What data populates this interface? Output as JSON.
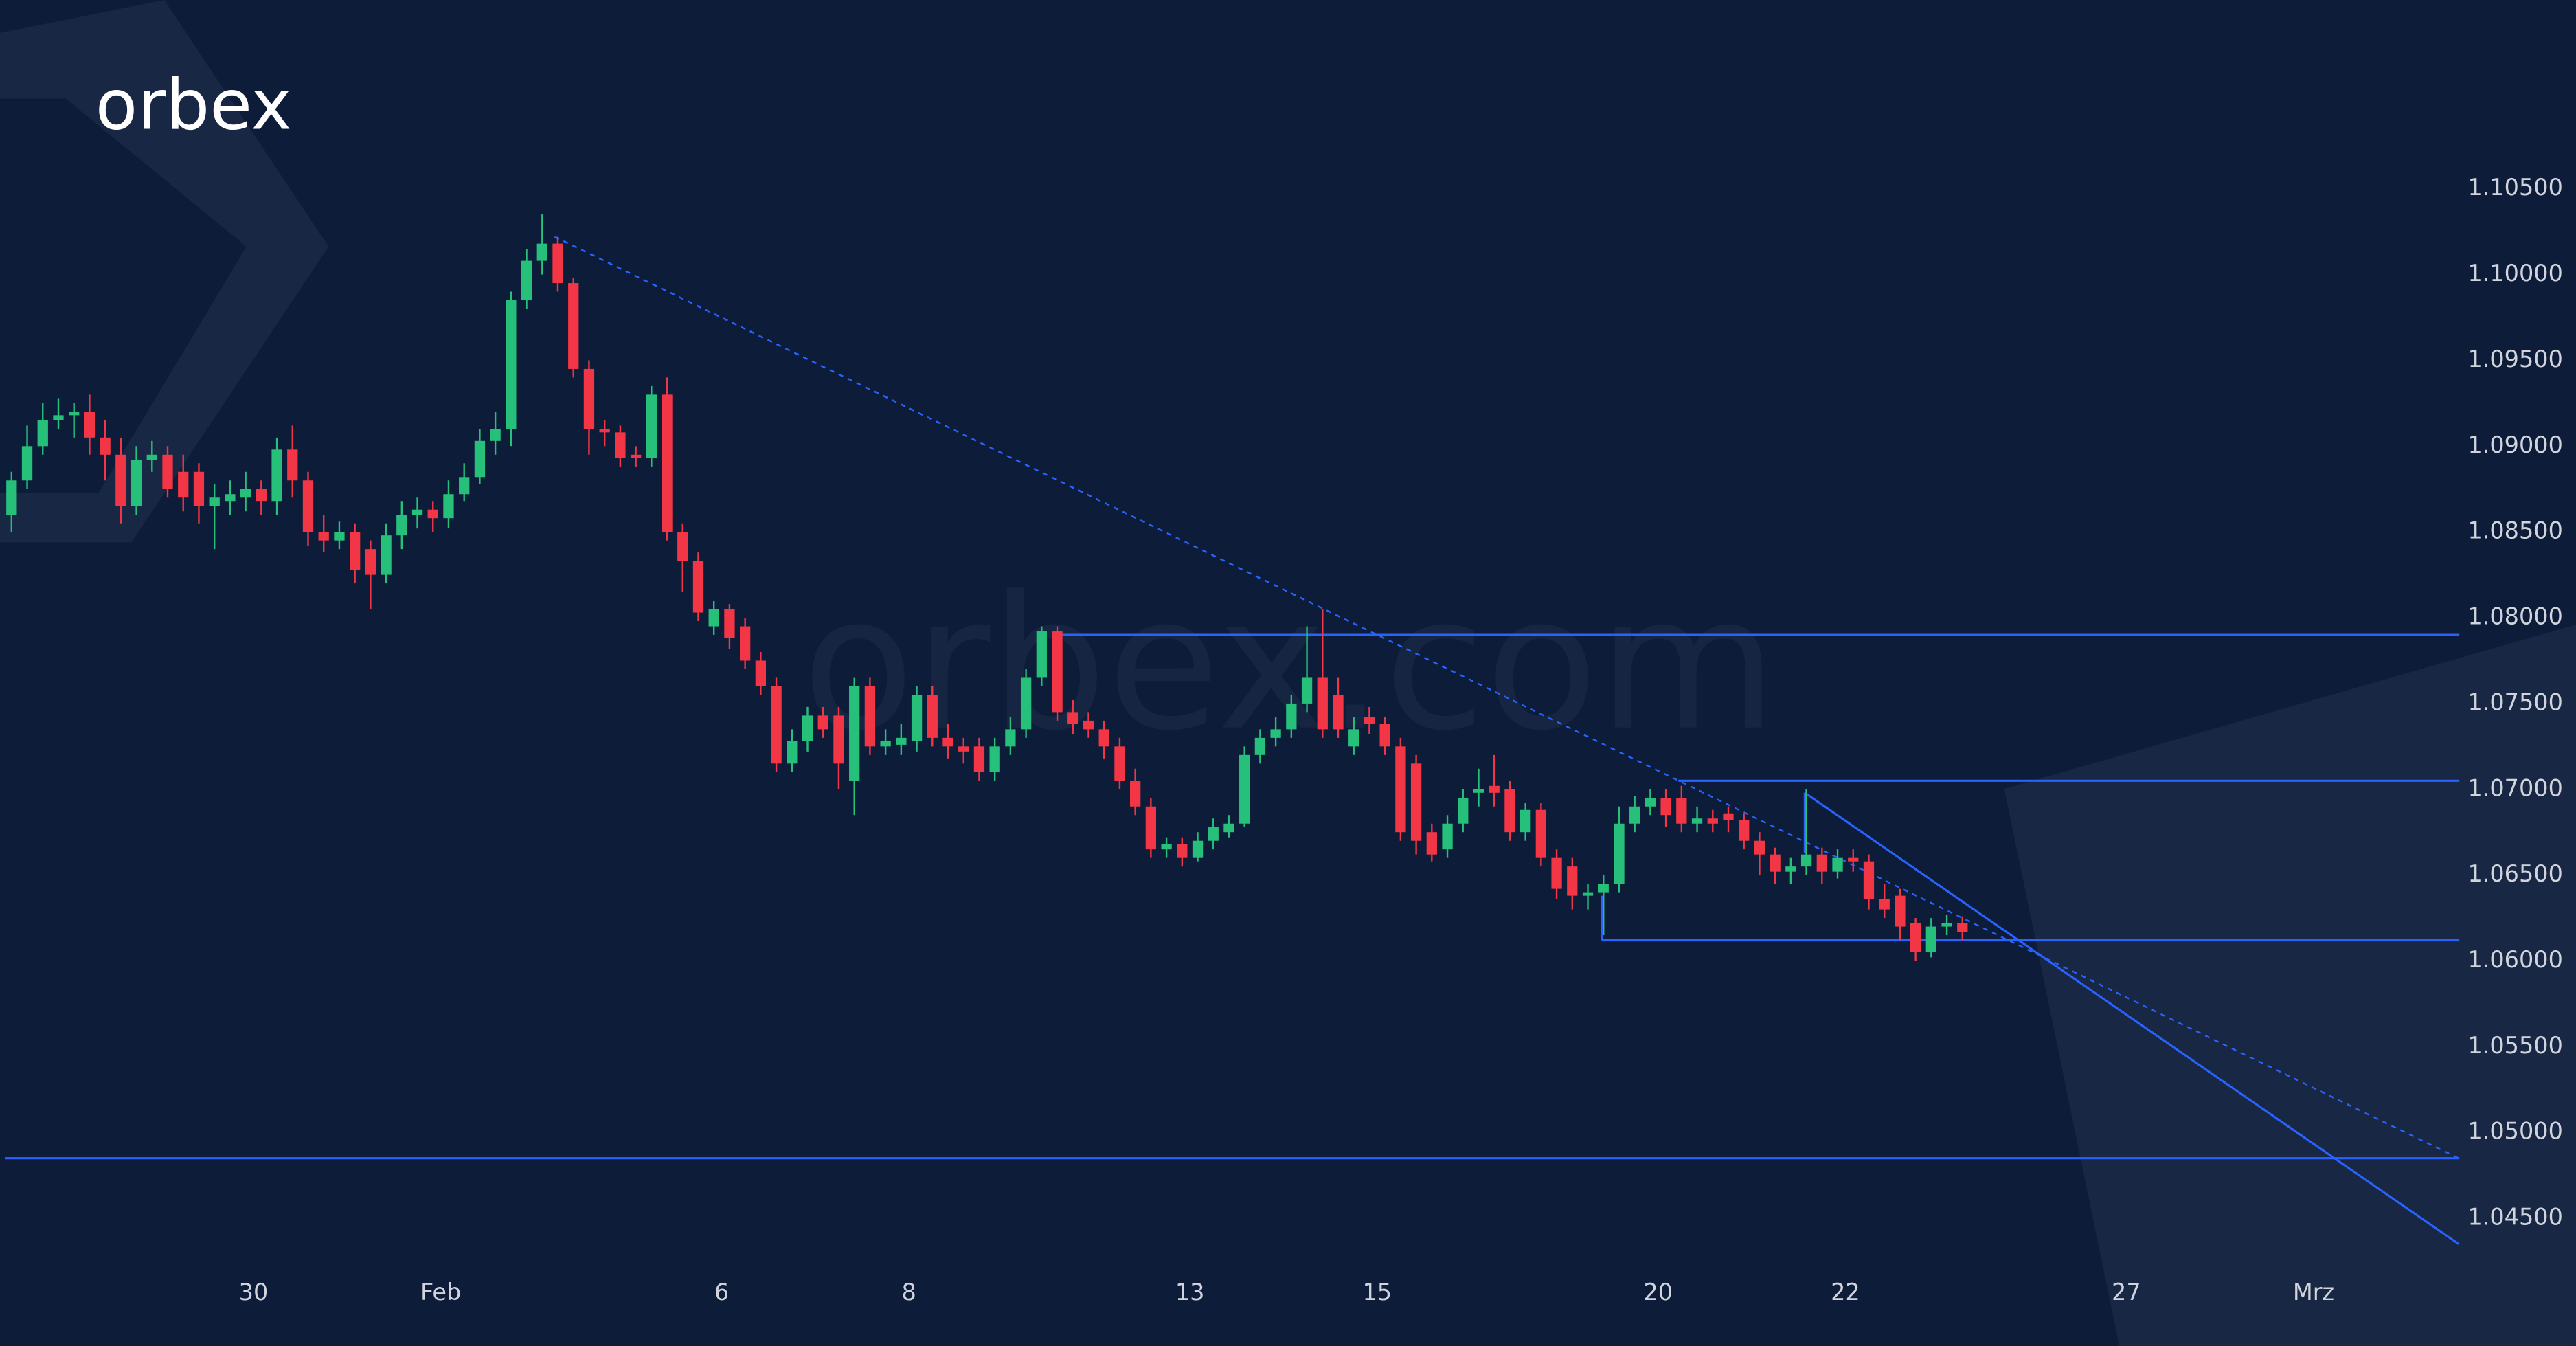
{
  "logo": "orbex",
  "watermark": "orbex.com",
  "chart_data": {
    "type": "candlestick",
    "up_color": "#26c07a",
    "down_color": "#f23645",
    "line_color": "#2962ff",
    "open": [
      1.086,
      1.088,
      1.09,
      1.0915,
      1.0918,
      1.092,
      1.0905,
      1.0895,
      1.0865,
      1.0892,
      1.0895,
      1.0885,
      1.0885,
      1.0865,
      1.0868,
      1.087,
      1.0875,
      1.0868,
      1.0898,
      1.088,
      1.085,
      1.0845,
      1.085,
      1.084,
      1.0825,
      1.0848,
      1.086,
      1.0863,
      1.0858,
      1.0872,
      1.0882,
      1.0903,
      1.091,
      1.0985,
      1.1008,
      1.1018,
      1.0995,
      1.0945,
      1.091,
      1.0908,
      1.0895,
      1.0893,
      1.093,
      1.085,
      1.0833,
      1.0795,
      1.0805,
      1.0795,
      1.0775,
      1.076,
      1.0715,
      1.0728,
      1.0743,
      1.0743,
      1.0705,
      1.076,
      1.0725,
      1.0726,
      1.0728,
      1.0755,
      1.073,
      1.0725,
      1.0725,
      1.071,
      1.0725,
      1.0735,
      1.0765,
      1.0792,
      1.0745,
      1.074,
      1.0735,
      1.0725,
      1.0705,
      1.069,
      1.0665,
      1.0668,
      1.066,
      1.067,
      1.0675,
      1.068,
      1.072,
      1.073,
      1.0735,
      1.075,
      1.0765,
      1.0755,
      1.0725,
      1.0742,
      1.0738,
      1.0725,
      1.0715,
      1.0675,
      1.0665,
      1.068,
      1.0698,
      1.0702,
      1.07,
      1.0675,
      1.0688,
      1.066,
      1.0655,
      1.0638,
      1.064,
      1.0645,
      1.068,
      1.069,
      1.0695,
      1.0695,
      1.068,
      1.0683,
      1.0686,
      1.0682,
      1.067,
      1.0662,
      1.0652,
      1.0655,
      1.0662,
      1.0652,
      1.066,
      1.0658,
      1.0636,
      1.0638,
      1.0622,
      1.0605,
      1.062,
      1.0622
    ],
    "high": [
      1.0885,
      1.0912,
      1.0925,
      1.0928,
      1.0925,
      1.093,
      1.0915,
      1.0905,
      1.09,
      1.0903,
      1.09,
      1.0895,
      1.089,
      1.0878,
      1.088,
      1.0885,
      1.088,
      1.0905,
      1.0912,
      1.0885,
      1.086,
      1.0856,
      1.0855,
      1.0845,
      1.0855,
      1.0868,
      1.087,
      1.0868,
      1.088,
      1.089,
      1.091,
      1.092,
      1.099,
      1.1015,
      1.1035,
      1.1022,
      1.0998,
      1.095,
      1.0915,
      1.0912,
      1.09,
      1.0935,
      1.094,
      1.0855,
      1.0838,
      1.081,
      1.0808,
      1.08,
      1.078,
      1.0765,
      1.0735,
      1.0748,
      1.0748,
      1.0748,
      1.0765,
      1.0765,
      1.0735,
      1.0738,
      1.076,
      1.076,
      1.0738,
      1.073,
      1.073,
      1.073,
      1.0742,
      1.077,
      1.0795,
      1.0795,
      1.0752,
      1.0745,
      1.074,
      1.073,
      1.0712,
      1.0695,
      1.0672,
      1.0672,
      1.0675,
      1.0683,
      1.0685,
      1.0725,
      1.0735,
      1.0742,
      1.0755,
      1.0795,
      1.0805,
      1.0765,
      1.0742,
      1.0748,
      1.0742,
      1.073,
      1.072,
      1.068,
      1.0685,
      1.07,
      1.0712,
      1.072,
      1.0705,
      1.0692,
      1.0692,
      1.0665,
      1.066,
      1.0645,
      1.065,
      1.069,
      1.0696,
      1.07,
      1.07,
      1.0702,
      1.069,
      1.0688,
      1.069,
      1.0686,
      1.0675,
      1.0666,
      1.066,
      1.07,
      1.0666,
      1.0665,
      1.0665,
      1.0662,
      1.0645,
      1.0642,
      1.0625,
      1.0625,
      1.0627,
      1.0626
    ],
    "low": [
      1.085,
      1.0875,
      1.0895,
      1.091,
      1.0905,
      1.0895,
      1.088,
      1.0855,
      1.086,
      1.0885,
      1.087,
      1.0862,
      1.0855,
      1.084,
      1.086,
      1.0862,
      1.086,
      1.086,
      1.087,
      1.0842,
      1.0838,
      1.084,
      1.082,
      1.0805,
      1.082,
      1.084,
      1.0852,
      1.085,
      1.0852,
      1.0868,
      1.0878,
      1.0895,
      1.09,
      1.098,
      1.1,
      1.099,
      1.094,
      1.0895,
      1.09,
      1.0888,
      1.0888,
      1.0888,
      1.0845,
      1.0815,
      1.0798,
      1.079,
      1.0782,
      1.077,
      1.0755,
      1.071,
      1.071,
      1.0722,
      1.073,
      1.07,
      1.0685,
      1.072,
      1.072,
      1.072,
      1.0722,
      1.0725,
      1.0718,
      1.0715,
      1.0705,
      1.0705,
      1.072,
      1.073,
      1.076,
      1.074,
      1.0732,
      1.073,
      1.0718,
      1.07,
      1.0685,
      1.066,
      1.066,
      1.0655,
      1.0658,
      1.0665,
      1.0672,
      1.0678,
      1.0715,
      1.0725,
      1.073,
      1.0745,
      1.073,
      1.073,
      1.072,
      1.0732,
      1.072,
      1.067,
      1.0662,
      1.0658,
      1.066,
      1.0675,
      1.069,
      1.069,
      1.067,
      1.067,
      1.0655,
      1.0636,
      1.063,
      1.063,
      1.0615,
      1.064,
      1.0675,
      1.0685,
      1.0678,
      1.0675,
      1.0675,
      1.0675,
      1.0675,
      1.0665,
      1.065,
      1.0645,
      1.0645,
      1.065,
      1.0645,
      1.0648,
      1.0652,
      1.063,
      1.0625,
      1.0612,
      1.06,
      1.0602,
      1.0615,
      1.0612
    ],
    "close": [
      1.088,
      1.09,
      1.0915,
      1.0918,
      1.092,
      1.0905,
      1.0895,
      1.0865,
      1.0892,
      1.0895,
      1.0875,
      1.087,
      1.0865,
      1.087,
      1.0872,
      1.0875,
      1.0868,
      1.0898,
      1.088,
      1.085,
      1.0845,
      1.085,
      1.0828,
      1.0825,
      1.0848,
      1.086,
      1.0863,
      1.0858,
      1.0872,
      1.0882,
      1.0903,
      1.091,
      1.0985,
      1.1008,
      1.1018,
      1.0995,
      1.0945,
      1.091,
      1.0908,
      1.0893,
      1.0893,
      1.093,
      1.085,
      1.0833,
      1.0803,
      1.0805,
      1.0788,
      1.0775,
      1.076,
      1.0715,
      1.0728,
      1.0743,
      1.0735,
      1.0715,
      1.076,
      1.0725,
      1.0728,
      1.073,
      1.0755,
      1.073,
      1.0725,
      1.0722,
      1.071,
      1.0725,
      1.0735,
      1.0765,
      1.0792,
      1.0745,
      1.0738,
      1.0735,
      1.0725,
      1.0705,
      1.069,
      1.0665,
      1.0668,
      1.066,
      1.067,
      1.0678,
      1.068,
      1.072,
      1.073,
      1.0735,
      1.075,
      1.0765,
      1.0735,
      1.0735,
      1.0735,
      1.0738,
      1.0725,
      1.0675,
      1.067,
      1.0662,
      1.068,
      1.0695,
      1.07,
      1.0698,
      1.0675,
      1.0688,
      1.066,
      1.0642,
      1.0638,
      1.064,
      1.0645,
      1.068,
      1.069,
      1.0695,
      1.0685,
      1.068,
      1.0683,
      1.068,
      1.0682,
      1.067,
      1.0662,
      1.0652,
      1.0655,
      1.0662,
      1.0652,
      1.066,
      1.0658,
      1.0636,
      1.063,
      1.062,
      1.0605,
      1.062,
      1.0622,
      1.0617
    ],
    "xlim": [
      -0.74,
      156.84
    ],
    "xticks": [
      {
        "value": 15.5,
        "label": "30"
      },
      {
        "value": 27.5,
        "label": "Feb"
      },
      {
        "value": 45.5,
        "label": "6"
      },
      {
        "value": 57.5,
        "label": "8"
      },
      {
        "value": 75.5,
        "label": "13"
      },
      {
        "value": 87.5,
        "label": "15"
      },
      {
        "value": 105.5,
        "label": "20"
      },
      {
        "value": 117.5,
        "label": "22"
      },
      {
        "value": 135.5,
        "label": "27"
      },
      {
        "value": 147.5,
        "label": "Mrz"
      }
    ],
    "ylim": [
      1.04225,
      1.116
    ],
    "yticks": [
      {
        "value": 1.045,
        "label": "1.04500"
      },
      {
        "value": 1.05,
        "label": "1.05000"
      },
      {
        "value": 1.055,
        "label": "1.05500"
      },
      {
        "value": 1.06,
        "label": "1.06000"
      },
      {
        "value": 1.065,
        "label": "1.06500"
      },
      {
        "value": 1.07,
        "label": "1.07000"
      },
      {
        "value": 1.075,
        "label": "1.07500"
      },
      {
        "value": 1.08,
        "label": "1.08000"
      },
      {
        "value": 1.085,
        "label": "1.08500"
      },
      {
        "value": 1.09,
        "label": "1.09000"
      },
      {
        "value": 1.095,
        "label": "1.09500"
      },
      {
        "value": 1.1,
        "label": "1.10000"
      },
      {
        "value": 1.105,
        "label": "1.10500"
      }
    ],
    "hlines": [
      {
        "value": 1.079,
        "x_start": 66.7
      },
      {
        "value": 1.0705,
        "x_start": 106.8
      },
      {
        "value": 1.0612,
        "x_start": 101.9
      },
      {
        "value": 1.0485,
        "x_start": -0.4
      }
    ],
    "trendlines": [
      {
        "x": [
          34.8,
          156.8
        ],
        "y": [
          1.1022,
          1.0485
        ],
        "style": "dotted"
      },
      {
        "x": [
          114.9,
          156.8
        ],
        "y": [
          1.0698,
          1.0435
        ],
        "style": "solid"
      },
      {
        "x": [
          101.9,
          101.9
        ],
        "y": [
          1.0638,
          1.0612
        ],
        "style": "solid"
      },
      {
        "x": [
          114.9,
          114.9
        ],
        "y": [
          1.0698,
          1.0663
        ],
        "style": "solid"
      }
    ]
  }
}
